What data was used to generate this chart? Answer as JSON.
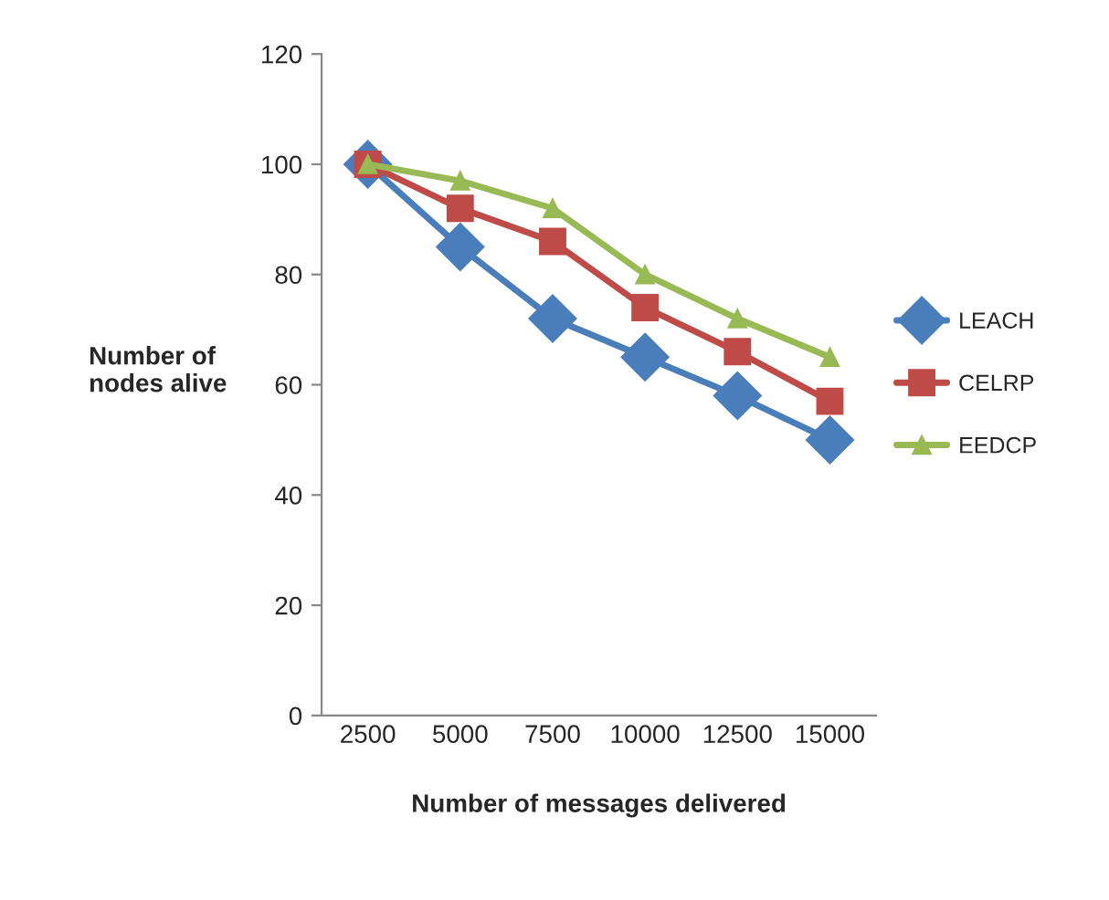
{
  "chart_data": {
    "type": "line",
    "xlabel": "Number of messages delivered",
    "ylabel": "Number of\nnodes alive",
    "categories": [
      "2500",
      "5000",
      "7500",
      "10000",
      "12500",
      "15000"
    ],
    "series": [
      {
        "name": "LEACH",
        "color": "#4a7ebb",
        "marker": "diamond",
        "values": [
          100,
          85,
          72,
          65,
          58,
          50
        ]
      },
      {
        "name": "CELRP",
        "color": "#be4b48",
        "marker": "square",
        "values": [
          100,
          92,
          86,
          74,
          66,
          57
        ]
      },
      {
        "name": "EEDCP",
        "color": "#98b954",
        "marker": "triangle",
        "values": [
          100,
          97,
          92,
          80,
          72,
          65
        ]
      }
    ],
    "ylim": [
      0,
      120
    ],
    "yticks": [
      0,
      20,
      40,
      60,
      80,
      100,
      120
    ],
    "grid": false,
    "legend": "right",
    "line_style": "solid"
  }
}
